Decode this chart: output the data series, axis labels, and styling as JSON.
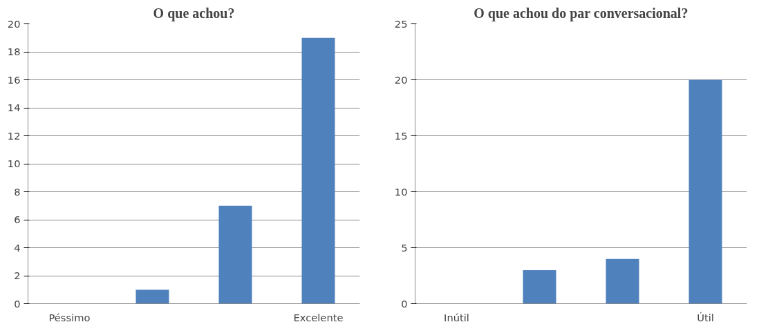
{
  "chart_data": [
    {
      "type": "bar",
      "title": "O que achou?",
      "categories": [
        "Péssimo",
        null,
        null,
        "Excelente"
      ],
      "values": [
        0,
        1,
        7,
        19
      ],
      "color": "#4f81bd",
      "ylim": [
        0,
        20
      ],
      "yticks": [
        0,
        2,
        4,
        6,
        8,
        10,
        12,
        14,
        16,
        18,
        20
      ],
      "grid": "y"
    },
    {
      "type": "bar",
      "title": "O que achou do par conversacional?",
      "categories": [
        "Inútil",
        null,
        null,
        "Útil"
      ],
      "values": [
        0,
        3,
        4,
        20
      ],
      "color": "#4f81bd",
      "ylim": [
        0,
        25
      ],
      "yticks": [
        0,
        5,
        10,
        15,
        20,
        25
      ],
      "grid": "y"
    }
  ]
}
